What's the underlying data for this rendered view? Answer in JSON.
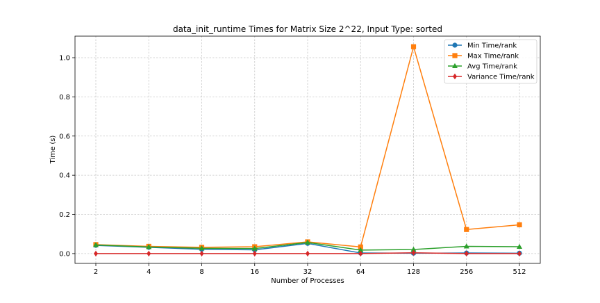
{
  "chart_data": {
    "type": "line",
    "title": "data_init_runtime Times for Matrix Size 2^22, Input Type: sorted",
    "xlabel": "Number of Processes",
    "ylabel": "Time (s)",
    "x_scale": "log2",
    "categories": [
      "2",
      "4",
      "8",
      "16",
      "32",
      "64",
      "128",
      "256",
      "512"
    ],
    "x": [
      2,
      4,
      8,
      16,
      32,
      64,
      128,
      256,
      512
    ],
    "ylim": [
      -0.05,
      1.11
    ],
    "yticks": [
      0.0,
      0.2,
      0.4,
      0.6,
      0.8,
      1.0
    ],
    "ytick_labels": [
      "0.0",
      "0.2",
      "0.4",
      "0.6",
      "0.8",
      "1.0"
    ],
    "grid": true,
    "legend_position": "top-right",
    "series": [
      {
        "name": "Min Time/rank",
        "color": "#1f77b4",
        "marker": "circle",
        "values": [
          0.042,
          0.032,
          0.022,
          0.019,
          0.052,
          0.003,
          0.002,
          0.003,
          0.002
        ]
      },
      {
        "name": "Max Time/rank",
        "color": "#ff7f0e",
        "marker": "square",
        "values": [
          0.046,
          0.037,
          0.032,
          0.035,
          0.06,
          0.034,
          1.056,
          0.123,
          0.147
        ]
      },
      {
        "name": "Avg Time/rank",
        "color": "#2ca02c",
        "marker": "triangle",
        "values": [
          0.044,
          0.034,
          0.027,
          0.026,
          0.057,
          0.018,
          0.021,
          0.037,
          0.035
        ]
      },
      {
        "name": "Variance Time/rank",
        "color": "#d62728",
        "marker": "diamond",
        "values": [
          0.0,
          0.0,
          0.0,
          0.0,
          0.0,
          0.0,
          0.004,
          0.0,
          0.0
        ]
      }
    ]
  }
}
